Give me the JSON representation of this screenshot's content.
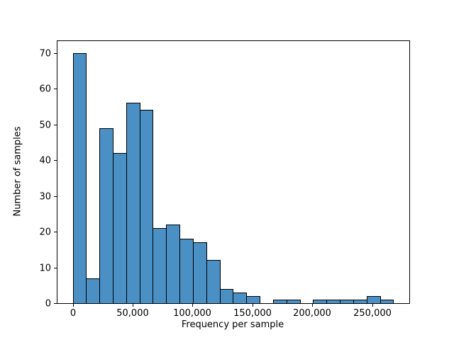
{
  "chart_data": {
    "type": "bar",
    "subtype": "histogram",
    "title": "",
    "xlabel": "Frequency per sample",
    "ylabel": "Number of samples",
    "bin_edges": [
      0,
      11150,
      22300,
      33450,
      44600,
      55750,
      66900,
      78050,
      89200,
      100350,
      111500,
      122650,
      133800,
      144950,
      156100,
      167250,
      178400,
      189550,
      200700,
      211850,
      223000,
      234150,
      245300,
      256450,
      267600
    ],
    "counts": [
      70,
      7,
      49,
      42,
      56,
      54,
      21,
      22,
      18,
      17,
      12,
      4,
      3,
      2,
      0,
      1,
      1,
      0,
      1,
      1,
      1,
      1,
      2,
      1
    ],
    "xlim": [
      -13350,
      281000
    ],
    "ylim": [
      0,
      73.5
    ],
    "x_tick_values": [
      0,
      50000,
      100000,
      150000,
      200000,
      250000
    ],
    "x_tick_labels": [
      "0",
      "50,000",
      "100,000",
      "150,000",
      "200,000",
      "250,000"
    ],
    "y_tick_values": [
      0,
      10,
      20,
      30,
      40,
      50,
      60,
      70
    ],
    "y_tick_labels": [
      "0",
      "10",
      "20",
      "30",
      "40",
      "50",
      "60",
      "70"
    ],
    "bar_color": "#4A90C4",
    "bar_edge_color": "#000000",
    "grid": false,
    "legend": false,
    "background_color": "#ffffff"
  }
}
